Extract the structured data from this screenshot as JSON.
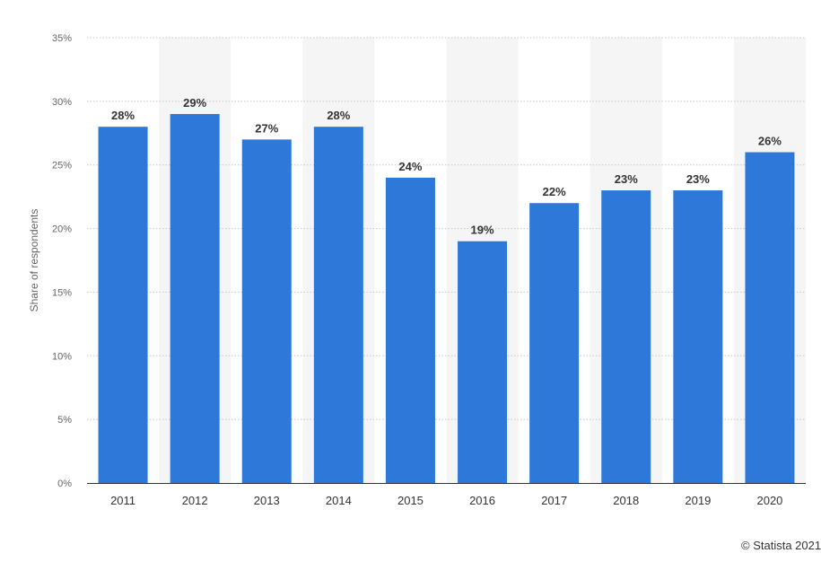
{
  "chart_data": {
    "type": "bar",
    "categories": [
      "2011",
      "2012",
      "2013",
      "2014",
      "2015",
      "2016",
      "2017",
      "2018",
      "2019",
      "2020"
    ],
    "values": [
      28,
      29,
      27,
      28,
      24,
      19,
      22,
      23,
      23,
      26
    ],
    "value_labels": [
      "28%",
      "29%",
      "27%",
      "28%",
      "24%",
      "19%",
      "22%",
      "23%",
      "23%",
      "26%"
    ],
    "ylabel": "Share of respondents",
    "xlabel": "",
    "ylim": [
      0,
      35
    ],
    "y_ticks": [
      0,
      5,
      10,
      15,
      20,
      25,
      30,
      35
    ],
    "y_tick_labels": [
      "0%",
      "5%",
      "10%",
      "15%",
      "20%",
      "25%",
      "30%",
      "35%"
    ],
    "grid": true,
    "bar_color": "#2e78d9",
    "band_color": "#f5f5f5"
  },
  "credit": "© Statista 2021"
}
